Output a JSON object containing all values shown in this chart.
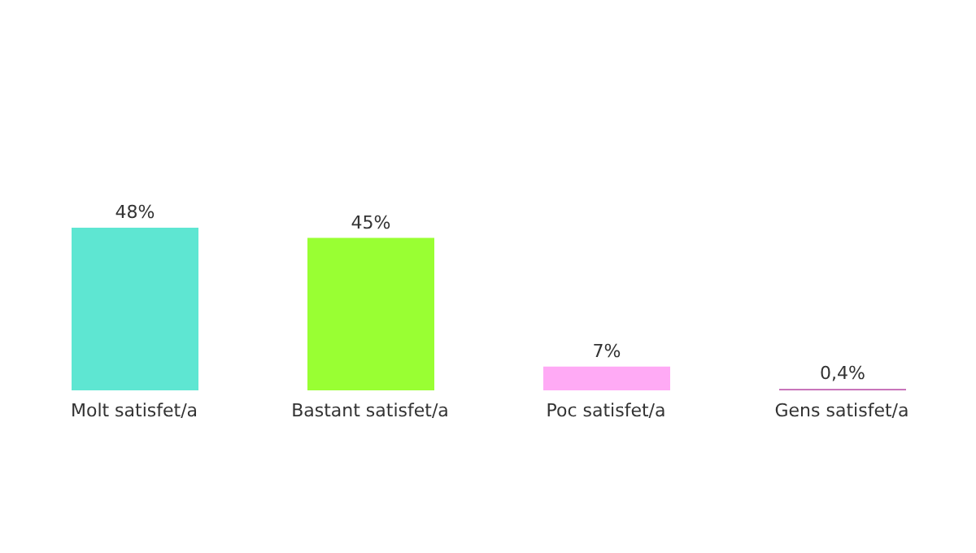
{
  "chart_data": {
    "type": "bar",
    "categories": [
      "Molt satisfet/a",
      "Bastant satisfet/a",
      "Poc satisfet/a",
      "Gens satisfet/a"
    ],
    "values": [
      48,
      45,
      7,
      0.4
    ],
    "colors": [
      "#5ee6d2",
      "#99ff33",
      "#ffaaf5",
      "#c060b0"
    ],
    "value_labels": [
      "48%",
      "45%",
      "7%",
      "0,4%"
    ],
    "grid": false,
    "legend": false
  }
}
